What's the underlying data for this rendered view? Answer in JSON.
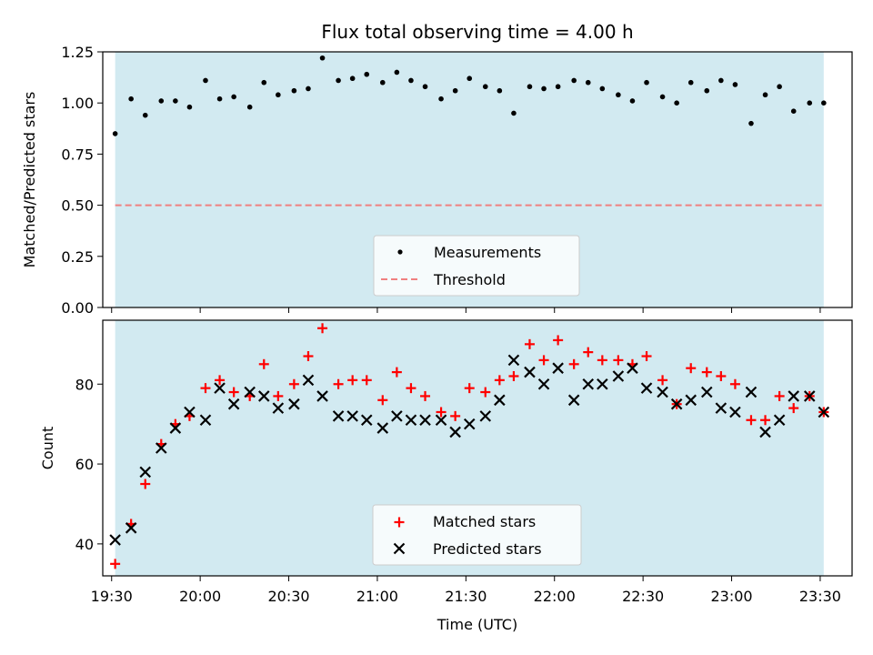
{
  "title": "Flux total observing time = 4.00 h",
  "colors": {
    "shade": "#add8e6",
    "threshold": "#f08080",
    "matched": "#ff0000",
    "predicted": "#000000",
    "measurement": "#000000"
  },
  "chart_data": [
    {
      "type": "scatter",
      "ylabel": "Matched/Predicted stars",
      "xlim": [
        19.45,
        23.68
      ],
      "ylim": [
        0,
        1.25
      ],
      "yticks": [
        "0.00",
        "0.25",
        "0.50",
        "0.75",
        "1.00",
        "1.25"
      ],
      "shaded_span": [
        19.52,
        23.52
      ],
      "threshold": 0.5,
      "legend": [
        "Measurements",
        "Threshold"
      ],
      "legend_position": "lower-center",
      "x": [
        19.52,
        19.61,
        19.69,
        19.78,
        19.86,
        19.94,
        20.03,
        20.11,
        20.19,
        20.28,
        20.36,
        20.44,
        20.53,
        20.61,
        20.69,
        20.78,
        20.86,
        20.94,
        21.03,
        21.11,
        21.19,
        21.27,
        21.36,
        21.44,
        21.52,
        21.61,
        21.69,
        21.77,
        21.86,
        21.94,
        22.02,
        22.11,
        22.19,
        22.27,
        22.36,
        22.44,
        22.52,
        22.61,
        22.69,
        22.77,
        22.86,
        22.94,
        23.02,
        23.11,
        23.19,
        23.27,
        23.35,
        23.44,
        23.52
      ],
      "values": [
        0.85,
        1.02,
        0.94,
        1.01,
        1.01,
        0.98,
        1.11,
        1.02,
        1.03,
        0.98,
        1.1,
        1.04,
        1.06,
        1.07,
        1.22,
        1.11,
        1.12,
        1.14,
        1.1,
        1.15,
        1.11,
        1.08,
        1.02,
        1.06,
        1.12,
        1.08,
        1.06,
        0.95,
        1.08,
        1.07,
        1.08,
        1.11,
        1.1,
        1.07,
        1.04,
        1.01,
        1.1,
        1.03,
        1.0,
        1.1,
        1.06,
        1.11,
        1.09,
        0.9,
        1.04,
        1.08,
        0.96,
        1.0,
        1.0
      ]
    },
    {
      "type": "scatter",
      "ylabel": "Count",
      "xlabel": "Time (UTC)",
      "xlim": [
        19.45,
        23.68
      ],
      "ylim": [
        32,
        96
      ],
      "yticks": [
        "40",
        "60",
        "80"
      ],
      "xticks": [
        "19:30",
        "20:00",
        "20:30",
        "21:00",
        "21:30",
        "22:00",
        "22:30",
        "23:00",
        "23:30"
      ],
      "shaded_span": [
        19.52,
        23.52
      ],
      "legend": [
        "Matched stars",
        "Predicted stars"
      ],
      "legend_position": "lower-center",
      "x": [
        19.52,
        19.61,
        19.69,
        19.78,
        19.86,
        19.94,
        20.03,
        20.11,
        20.19,
        20.28,
        20.36,
        20.44,
        20.53,
        20.61,
        20.69,
        20.78,
        20.86,
        20.94,
        21.03,
        21.11,
        21.19,
        21.27,
        21.36,
        21.44,
        21.52,
        21.61,
        21.69,
        21.77,
        21.86,
        21.94,
        22.02,
        22.11,
        22.19,
        22.27,
        22.36,
        22.44,
        22.52,
        22.61,
        22.69,
        22.77,
        22.86,
        22.94,
        23.02,
        23.11,
        23.19,
        23.27,
        23.35,
        23.44,
        23.52
      ],
      "series": [
        {
          "name": "Matched stars",
          "values": [
            35,
            45,
            55,
            65,
            70,
            72,
            79,
            81,
            78,
            77,
            85,
            77,
            80,
            87,
            94,
            80,
            81,
            81,
            76,
            83,
            79,
            77,
            73,
            72,
            79,
            78,
            81,
            82,
            90,
            86,
            91,
            85,
            88,
            86,
            86,
            85,
            87,
            81,
            75,
            84,
            83,
            82,
            80,
            71,
            71,
            77,
            74,
            77,
            73
          ]
        },
        {
          "name": "Predicted stars",
          "values": [
            41,
            44,
            58,
            64,
            69,
            73,
            71,
            79,
            75,
            78,
            77,
            74,
            75,
            81,
            77,
            72,
            72,
            71,
            69,
            72,
            71,
            71,
            71,
            68,
            70,
            72,
            76,
            86,
            83,
            80,
            84,
            76,
            80,
            80,
            82,
            84,
            79,
            78,
            75,
            76,
            78,
            74,
            73,
            78,
            68,
            71,
            77,
            77,
            73
          ]
        }
      ]
    }
  ]
}
